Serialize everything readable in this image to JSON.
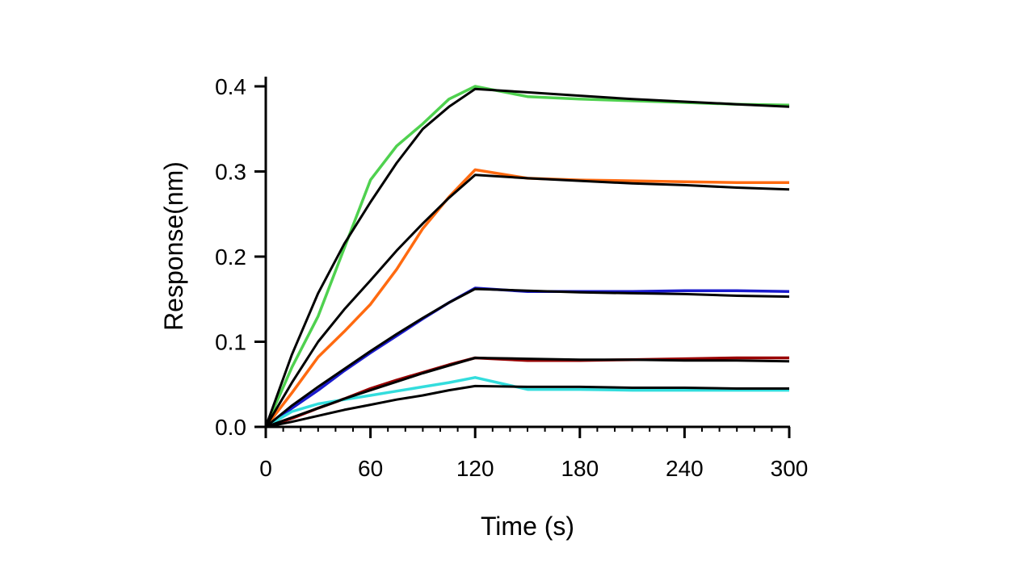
{
  "chart_data": {
    "type": "line",
    "title": "",
    "xlabel": "Time (s)",
    "ylabel": "Response(nm)",
    "xlim": [
      0,
      300
    ],
    "ylim": [
      0,
      0.4
    ],
    "xticks": [
      "0",
      "60",
      "120",
      "180",
      "240",
      "300"
    ],
    "yticks": [
      "0.0",
      "0.1",
      "0.2",
      "0.3",
      "0.4"
    ],
    "grid": false,
    "x": [
      0,
      15,
      30,
      45,
      60,
      75,
      90,
      105,
      120,
      150,
      180,
      210,
      240,
      270,
      300
    ],
    "series": [
      {
        "name": "green data",
        "color": "#4fd14f",
        "values": [
          0,
          0.07,
          0.13,
          0.21,
          0.29,
          0.33,
          0.356,
          0.385,
          0.4,
          0.388,
          0.385,
          0.383,
          0.381,
          0.379,
          0.378
        ]
      },
      {
        "name": "green fit",
        "color": "#000000",
        "values": [
          0,
          0.085,
          0.157,
          0.215,
          0.264,
          0.31,
          0.35,
          0.376,
          0.397,
          0.393,
          0.389,
          0.385,
          0.382,
          0.379,
          0.376
        ]
      },
      {
        "name": "orange data",
        "color": "#ff6a10",
        "values": [
          0,
          0.04,
          0.082,
          0.112,
          0.144,
          0.185,
          0.233,
          0.27,
          0.302,
          0.292,
          0.29,
          0.289,
          0.288,
          0.287,
          0.287
        ]
      },
      {
        "name": "orange fit",
        "color": "#000000",
        "values": [
          0,
          0.052,
          0.1,
          0.138,
          0.172,
          0.207,
          0.239,
          0.269,
          0.296,
          0.292,
          0.289,
          0.286,
          0.284,
          0.281,
          0.279
        ]
      },
      {
        "name": "blue data",
        "color": "#1a1acc",
        "values": [
          0,
          0.022,
          0.043,
          0.066,
          0.087,
          0.107,
          0.127,
          0.146,
          0.163,
          0.159,
          0.159,
          0.159,
          0.16,
          0.16,
          0.159
        ]
      },
      {
        "name": "blue fit",
        "color": "#000000",
        "values": [
          0,
          0.025,
          0.047,
          0.068,
          0.089,
          0.109,
          0.128,
          0.146,
          0.162,
          0.16,
          0.158,
          0.157,
          0.156,
          0.154,
          0.153
        ]
      },
      {
        "name": "dark red data",
        "color": "#990000",
        "values": [
          0,
          0.01,
          0.022,
          0.033,
          0.045,
          0.055,
          0.064,
          0.073,
          0.081,
          0.078,
          0.078,
          0.079,
          0.08,
          0.081,
          0.081
        ]
      },
      {
        "name": "dark red fit",
        "color": "#000000",
        "values": [
          0,
          0.011,
          0.022,
          0.033,
          0.043,
          0.053,
          0.063,
          0.072,
          0.081,
          0.08,
          0.079,
          0.079,
          0.078,
          0.078,
          0.077
        ]
      },
      {
        "name": "cyan data",
        "color": "#33dddd",
        "values": [
          0,
          0.018,
          0.027,
          0.032,
          0.037,
          0.042,
          0.047,
          0.052,
          0.058,
          0.044,
          0.044,
          0.043,
          0.043,
          0.043,
          0.043
        ]
      },
      {
        "name": "cyan fit",
        "color": "#000000",
        "values": [
          0,
          0.006,
          0.013,
          0.02,
          0.026,
          0.032,
          0.037,
          0.043,
          0.048,
          0.047,
          0.047,
          0.046,
          0.046,
          0.045,
          0.045
        ]
      }
    ]
  }
}
